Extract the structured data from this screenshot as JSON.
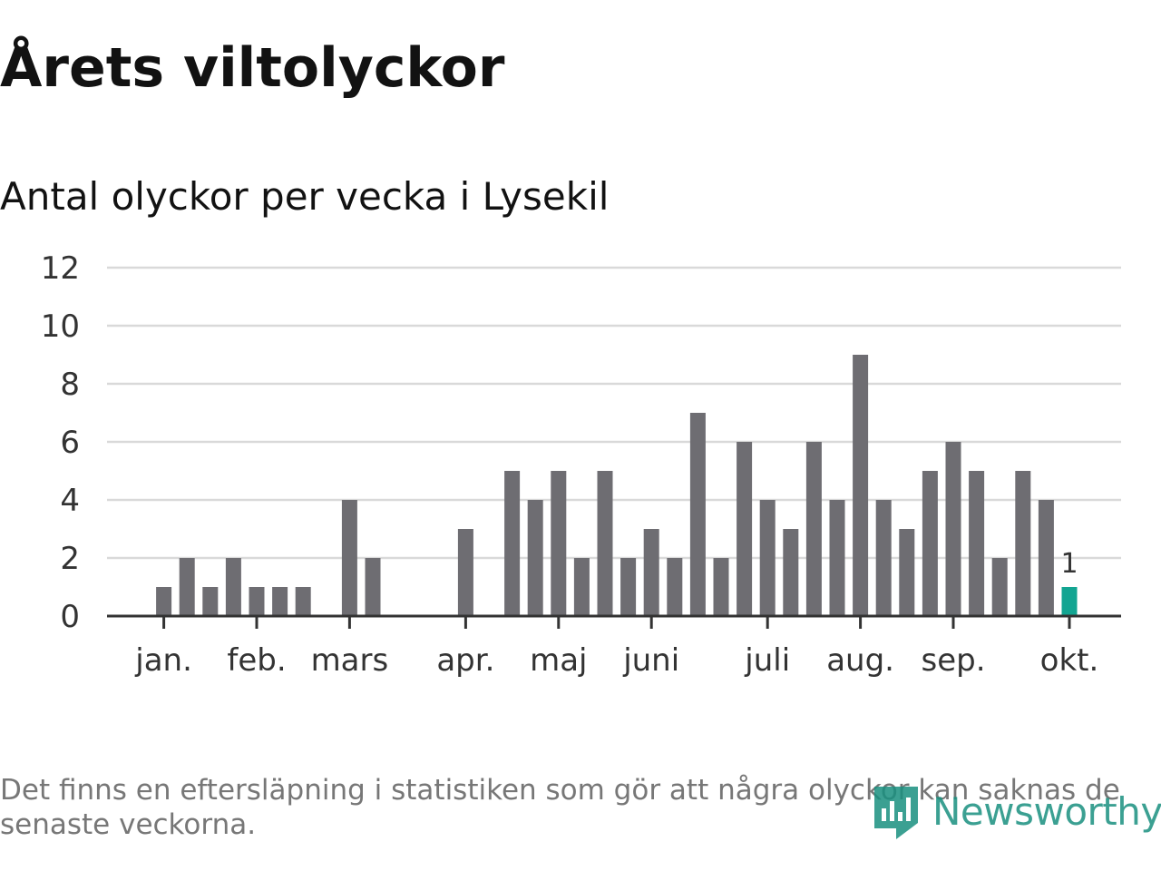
{
  "title": "Årets viltolyckor",
  "chart_data": {
    "type": "bar",
    "title": "Antal olyckor per vecka i Lysekil",
    "xlabel": "",
    "ylabel": "",
    "ylim": [
      0,
      12
    ],
    "yticks": [
      "0",
      "2",
      "4",
      "6",
      "8",
      "10",
      "12"
    ],
    "grid": true,
    "values": [
      0,
      1,
      2,
      1,
      2,
      1,
      1,
      1,
      0,
      4,
      2,
      0,
      0,
      0,
      3,
      0,
      5,
      4,
      5,
      2,
      5,
      2,
      3,
      2,
      7,
      2,
      6,
      4,
      3,
      6,
      4,
      9,
      4,
      3,
      5,
      6,
      5,
      2,
      5,
      4,
      1
    ],
    "month_labels": [
      {
        "label": "jan.",
        "week": 1
      },
      {
        "label": "feb.",
        "week": 5
      },
      {
        "label": "mars",
        "week": 9
      },
      {
        "label": "apr.",
        "week": 14
      },
      {
        "label": "maj",
        "week": 18
      },
      {
        "label": "juni",
        "week": 22
      },
      {
        "label": "juli",
        "week": 27
      },
      {
        "label": "aug.",
        "week": 31
      },
      {
        "label": "sep.",
        "week": 35
      },
      {
        "label": "okt.",
        "week": 40
      }
    ],
    "annotations": [
      {
        "week": 40,
        "text": "1"
      }
    ],
    "colors": {
      "bar": "#6e6d72",
      "highlight": "#13a592",
      "grid": "#d9d9d9",
      "axis": "#333333"
    }
  },
  "footnote": "Det finns en eftersläpning i statistiken som gör att några olyckor kan saknas de senaste veckorna.",
  "logo": {
    "text": "Newsworthy",
    "icon": "bar-chart-shield-icon",
    "color": "#1a9080"
  }
}
